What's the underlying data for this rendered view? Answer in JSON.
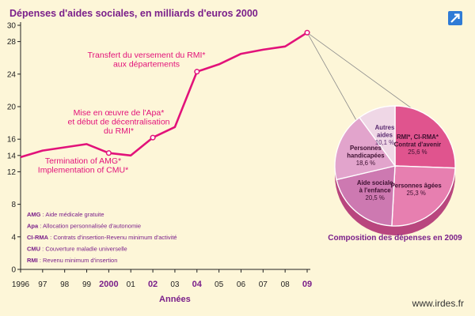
{
  "chart_data": {
    "type": "line",
    "title": "Dépenses d'aides sociales, en milliards d'euros 2000",
    "xlabel": "Années",
    "ylabel": "",
    "ylim": [
      0,
      30
    ],
    "yticks": [
      0,
      4,
      8,
      12,
      14,
      16,
      20,
      24,
      28,
      30
    ],
    "categories": [
      "1996",
      "97",
      "98",
      "99",
      "2000",
      "01",
      "02",
      "03",
      "04",
      "05",
      "06",
      "07",
      "08",
      "09"
    ],
    "bold_categories": [
      "2000",
      "02",
      "04",
      "09"
    ],
    "series": [
      {
        "values": [
          13.8,
          14.6,
          15.0,
          15.4,
          14.3,
          14.0,
          16.2,
          17.5,
          24.3,
          25.2,
          26.5,
          27.0,
          27.4,
          29.1
        ]
      }
    ],
    "markers": [
      "2000",
      "02",
      "04",
      "09"
    ],
    "annotations": [
      {
        "lines": [
          "Transfert du versement du RMI*",
          "aux départements"
        ]
      },
      {
        "lines": [
          "Mise en œuvre de l'Apa*",
          "et début de décentralisation",
          "du RMI*"
        ]
      },
      {
        "lines": [
          "Termination of AMG*",
          "Implementation of CMU*"
        ]
      }
    ],
    "glossary": [
      {
        "abbr": "AMG",
        "text": "Aide médicale gratuite"
      },
      {
        "abbr": "Apa",
        "text": "Allocation personnalisée d'autonomie"
      },
      {
        "abbr": "CI-RMA",
        "text": "Contrats d'insertion-Revenu minimum d'activité"
      },
      {
        "abbr": "CMU",
        "text": "Couverture maladie universelle"
      },
      {
        "abbr": "RMI",
        "text": "Revenu minimum d'insertion"
      }
    ],
    "pie": {
      "title": "Composition des dépenses en 2009",
      "slices": [
        {
          "lines": [
            "RMI*, CI-RMA*",
            "Contrat d'avenir"
          ],
          "pct": "25,6 %",
          "value": 25.6,
          "color": "#e0548e",
          "text_color": "#3d1030"
        },
        {
          "lines": [
            "Personnes âgées"
          ],
          "pct": "25,3 %",
          "value": 25.3,
          "color": "#e77fb0",
          "text_color": "#3d1030"
        },
        {
          "lines": [
            "Aide sociale",
            "à l'enfance"
          ],
          "pct": "20,5 %",
          "value": 20.5,
          "color": "#cd79b1",
          "text_color": "#3d1030"
        },
        {
          "lines": [
            "Personnes",
            "handicapées"
          ],
          "pct": "18,6 %",
          "value": 18.6,
          "color": "#e2a4cc",
          "text_color": "#3d1030"
        },
        {
          "lines": [
            "Autres",
            "aides"
          ],
          "pct": "10,1 %",
          "value": 10.1,
          "color": "#efd7e6",
          "text_color": "#5a2a70"
        }
      ]
    }
  },
  "footer": {
    "site": "www.irdes.fr"
  },
  "colors": {
    "line": "#e2127a",
    "accent": "#7a1f8a",
    "axis": "#222222",
    "background": "#fdf6d8",
    "guide": "#8a8a8a"
  },
  "icons": {
    "corner": "external-link-icon"
  }
}
